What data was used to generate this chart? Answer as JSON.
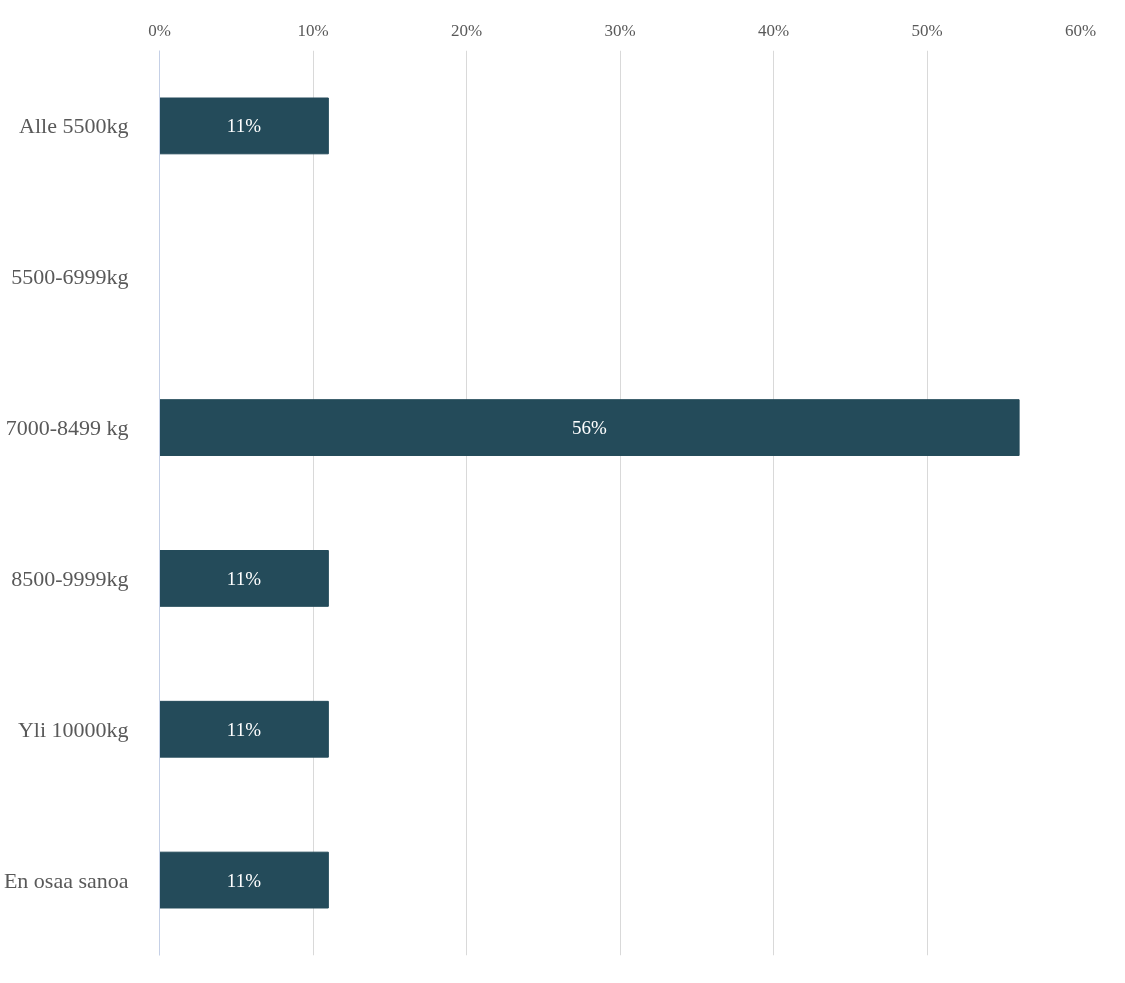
{
  "chart_data": {
    "type": "bar",
    "orientation": "horizontal",
    "categories": [
      "Alle 5500kg",
      "5500-6999kg",
      "7000-8499 kg",
      "8500-9999kg",
      "Yli 10000kg",
      "En osaa sanoa"
    ],
    "values": [
      11,
      0,
      56,
      11,
      11,
      11
    ],
    "value_labels": [
      "11%",
      null,
      "56%",
      "11%",
      "11%",
      "11%"
    ],
    "color": "#244b5a",
    "xlim": [
      0,
      60
    ],
    "xticks": [
      {
        "value": 0,
        "label": "0%"
      },
      {
        "value": 10,
        "label": "10%"
      },
      {
        "value": 20,
        "label": "20%"
      },
      {
        "value": 30,
        "label": "30%"
      },
      {
        "value": 40,
        "label": "40%"
      },
      {
        "value": 50,
        "label": "50%"
      },
      {
        "value": 60,
        "label": "60%"
      }
    ],
    "grid": "x"
  }
}
